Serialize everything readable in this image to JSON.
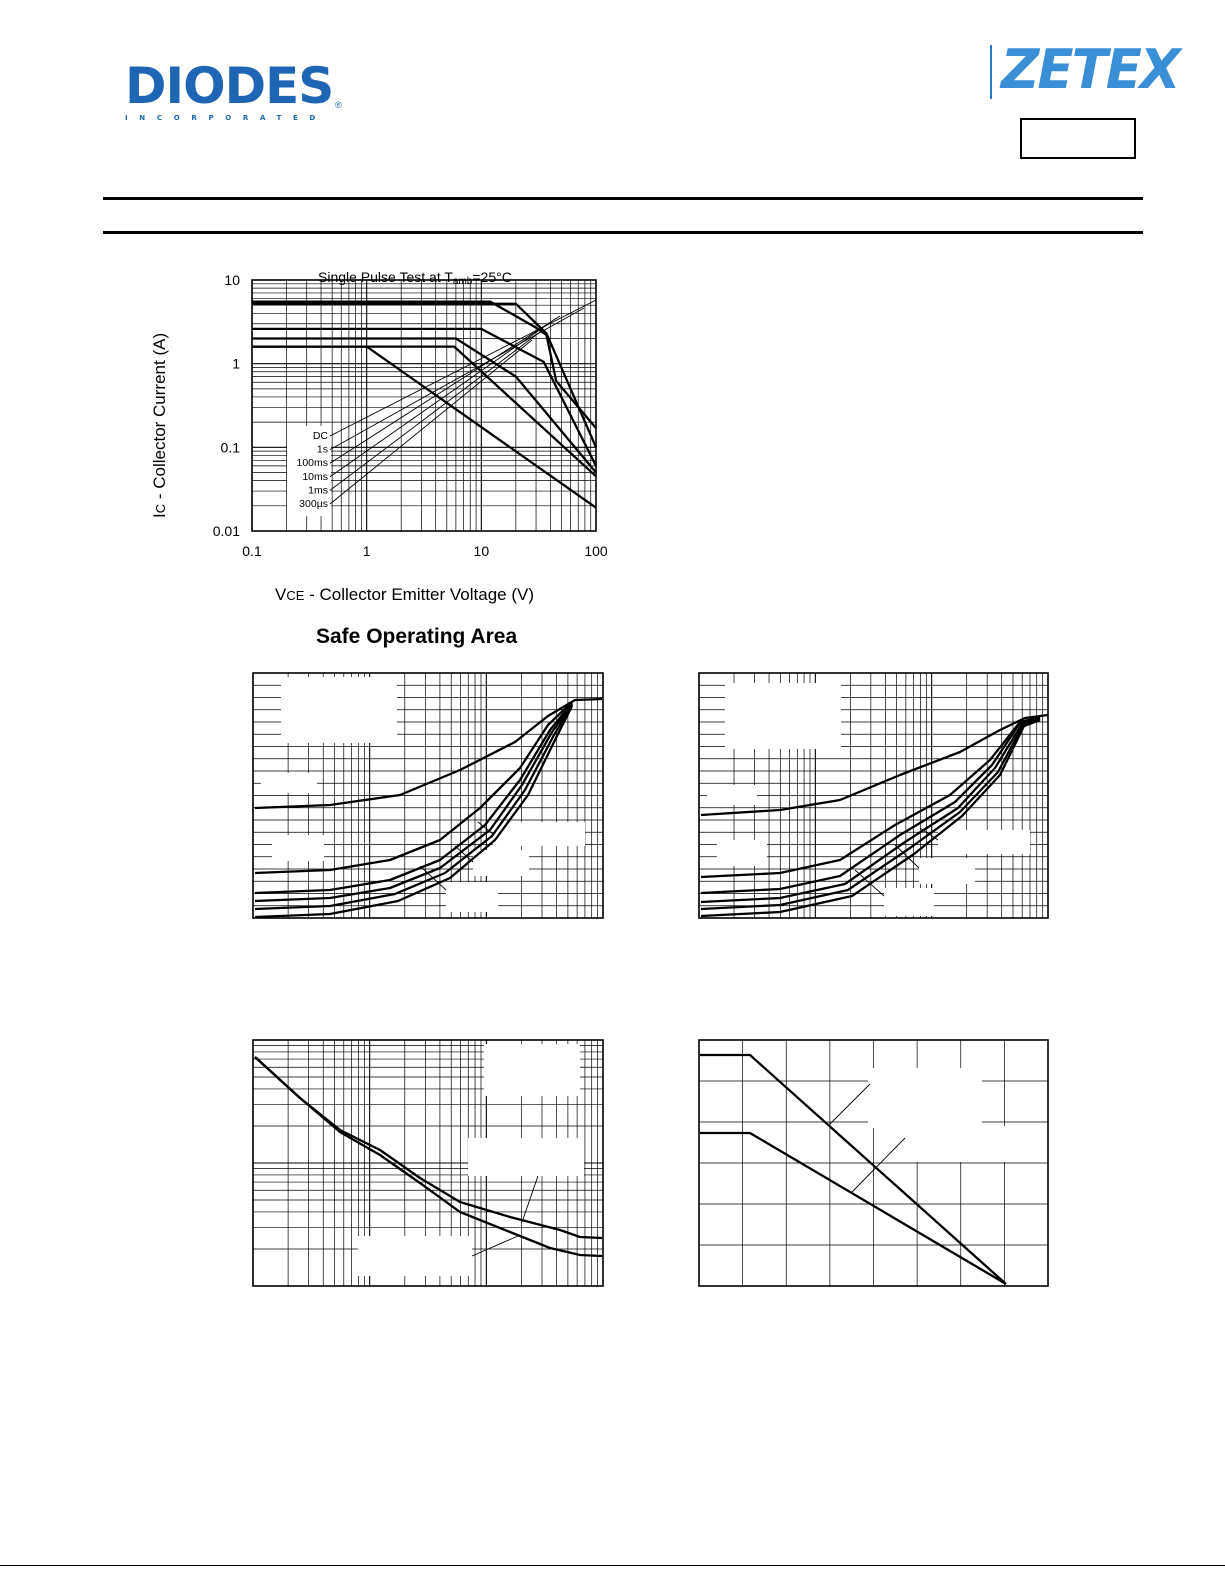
{
  "header": {
    "logo_left": {
      "wordmark": "DIODES",
      "registered": "®",
      "subline": "INCORPORATED"
    },
    "logo_right": {
      "wordmark": "ZETEX"
    }
  },
  "chart_data": [
    {
      "type": "line",
      "title": "Single Pulse Test at Tamb=25°C",
      "title_main": "Single Pulse Test at T",
      "title_sub": "amb",
      "title_tail": "=25°C",
      "caption": "Safe Operating Area",
      "xlabel": "VCE - Collector Emitter Voltage (V)",
      "xlabel_prefix": "V",
      "xlabel_sub": "CE",
      "xlabel_rest": " - Collector Emitter Voltage (V)",
      "ylabel": "IC - Collector Current (A)",
      "ylabel_prefix": "I",
      "ylabel_sub": "C",
      "ylabel_rest": " - Collector Current (A)",
      "x_scale": "log",
      "y_scale": "log",
      "xlim": [
        0.1,
        100
      ],
      "ylim": [
        0.01,
        10
      ],
      "x_ticks": [
        "0.1",
        "1",
        "10",
        "100"
      ],
      "y_ticks": [
        "0.01",
        "0.1",
        "1",
        "10"
      ],
      "grid": true,
      "series": [
        {
          "name": "DC",
          "points": [
            [
              0.1,
              1.6
            ],
            [
              1,
              1.6
            ],
            [
              100,
              0.019
            ]
          ]
        },
        {
          "name": "1s",
          "points": [
            [
              0.1,
              1.6
            ],
            [
              5.8,
              1.6
            ],
            [
              100,
              0.045
            ]
          ]
        },
        {
          "name": "100ms",
          "points": [
            [
              0.1,
              2.0
            ],
            [
              6,
              2.0
            ],
            [
              20,
              0.7
            ],
            [
              100,
              0.05
            ]
          ]
        },
        {
          "name": "10ms",
          "points": [
            [
              0.1,
              2.6
            ],
            [
              10,
              2.6
            ],
            [
              35,
              1.05
            ],
            [
              100,
              0.06
            ]
          ]
        },
        {
          "name": "1ms",
          "points": [
            [
              0.1,
              5.2
            ],
            [
              20,
              5.2
            ],
            [
              37,
              2.3
            ],
            [
              100,
              0.1
            ]
          ]
        },
        {
          "name": "300µs",
          "points": [
            [
              0.1,
              5.5
            ],
            [
              12,
              5.5
            ],
            [
              30,
              2.7
            ],
            [
              37,
              2.2
            ],
            [
              45,
              0.62
            ],
            [
              100,
              0.17
            ]
          ]
        }
      ]
    },
    {
      "type": "line",
      "x_scale": "log",
      "grid": true,
      "series_count": 6
    },
    {
      "type": "line",
      "x_scale": "log",
      "grid": true,
      "series_count": 6
    },
    {
      "type": "line",
      "x_scale": "log",
      "y_scale": "log",
      "grid": true,
      "series_count": 2
    },
    {
      "type": "line",
      "grid": true,
      "series_count": 2
    }
  ]
}
